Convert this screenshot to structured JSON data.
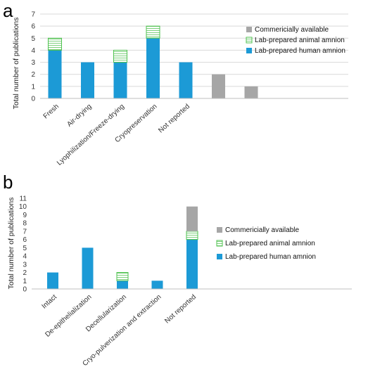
{
  "colors": {
    "human": "#1c9ad6",
    "animal_fill": "#ffffff",
    "animal_stroke": "#4fc24f",
    "commercial": "#a6a6a6",
    "grid": "#d9d9d9",
    "axis": "#bfbfbf"
  },
  "chart_data": [
    {
      "panel": "a",
      "type": "bar",
      "stacked": true,
      "ylabel": "Total number of publications",
      "ylim": [
        0,
        7
      ],
      "yticks": [
        0,
        1,
        2,
        3,
        4,
        5,
        6,
        7
      ],
      "categories": [
        "Fresh",
        "Air-drying",
        "Lyophilization/Freeze-drying",
        "Cryopreservation",
        "Not reported",
        "",
        ""
      ],
      "series": [
        {
          "name": "Lab-prepared human amnion",
          "key": "human",
          "values": [
            4,
            3,
            3,
            5,
            3,
            0,
            0
          ]
        },
        {
          "name": "Lab-prepared animal amnion",
          "key": "animal",
          "values": [
            1,
            0,
            1,
            1,
            0,
            0,
            0
          ]
        },
        {
          "name": "Commericially available",
          "key": "commercial",
          "values": [
            0,
            0,
            0,
            0,
            0,
            2,
            1
          ]
        }
      ],
      "legend_order": [
        "commercial",
        "animal",
        "human"
      ],
      "legend_position": "right",
      "grid": true
    },
    {
      "panel": "b",
      "type": "bar",
      "stacked": true,
      "ylabel": "Total number of publications",
      "ylim": [
        0,
        11
      ],
      "yticks": [
        0,
        1,
        2,
        3,
        4,
        5,
        6,
        7,
        8,
        9,
        10,
        11
      ],
      "categories": [
        "Intact",
        "De-epithelialization",
        "Decellularization",
        "Cryo-pulverization and extraction",
        "Not reported"
      ],
      "series": [
        {
          "name": "Lab-prepared human amnion",
          "key": "human",
          "values": [
            2,
            5,
            1,
            1,
            6
          ]
        },
        {
          "name": "Lab-prepared animal amnion",
          "key": "animal",
          "values": [
            0,
            0,
            1,
            0,
            1
          ]
        },
        {
          "name": "Commericially available",
          "key": "commercial",
          "values": [
            0,
            0,
            0,
            0,
            3
          ]
        }
      ],
      "legend_order": [
        "commercial",
        "animal",
        "human"
      ],
      "legend_position": "right",
      "grid": false
    }
  ]
}
